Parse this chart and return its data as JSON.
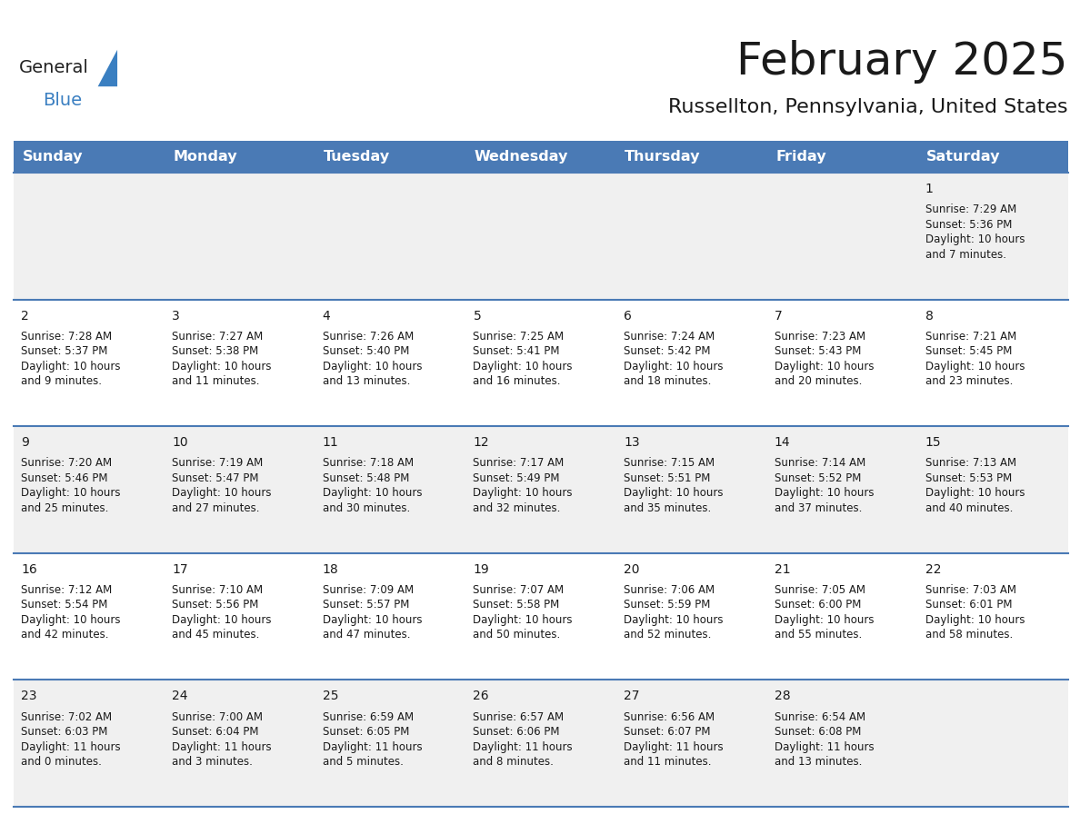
{
  "title": "February 2025",
  "subtitle": "Russellton, Pennsylvania, United States",
  "header_bg": "#4a7ab5",
  "header_text": "#ffffff",
  "row_bg_light": "#f0f0f0",
  "row_bg_white": "#ffffff",
  "border_color": "#4a7ab5",
  "text_color": "#1a1a1a",
  "day_headers": [
    "Sunday",
    "Monday",
    "Tuesday",
    "Wednesday",
    "Thursday",
    "Friday",
    "Saturday"
  ],
  "title_fontsize": 36,
  "subtitle_fontsize": 16,
  "header_fontsize": 11.5,
  "cell_day_fontsize": 10,
  "cell_text_fontsize": 8.5,
  "logo_general_fontsize": 14,
  "logo_blue_fontsize": 14,
  "days": [
    {
      "day": 1,
      "col": 6,
      "row": 0,
      "sunrise": "7:29 AM",
      "sunset": "5:36 PM",
      "daylight_line1": "Daylight: 10 hours",
      "daylight_line2": "and 7 minutes."
    },
    {
      "day": 2,
      "col": 0,
      "row": 1,
      "sunrise": "7:28 AM",
      "sunset": "5:37 PM",
      "daylight_line1": "Daylight: 10 hours",
      "daylight_line2": "and 9 minutes."
    },
    {
      "day": 3,
      "col": 1,
      "row": 1,
      "sunrise": "7:27 AM",
      "sunset": "5:38 PM",
      "daylight_line1": "Daylight: 10 hours",
      "daylight_line2": "and 11 minutes."
    },
    {
      "day": 4,
      "col": 2,
      "row": 1,
      "sunrise": "7:26 AM",
      "sunset": "5:40 PM",
      "daylight_line1": "Daylight: 10 hours",
      "daylight_line2": "and 13 minutes."
    },
    {
      "day": 5,
      "col": 3,
      "row": 1,
      "sunrise": "7:25 AM",
      "sunset": "5:41 PM",
      "daylight_line1": "Daylight: 10 hours",
      "daylight_line2": "and 16 minutes."
    },
    {
      "day": 6,
      "col": 4,
      "row": 1,
      "sunrise": "7:24 AM",
      "sunset": "5:42 PM",
      "daylight_line1": "Daylight: 10 hours",
      "daylight_line2": "and 18 minutes."
    },
    {
      "day": 7,
      "col": 5,
      "row": 1,
      "sunrise": "7:23 AM",
      "sunset": "5:43 PM",
      "daylight_line1": "Daylight: 10 hours",
      "daylight_line2": "and 20 minutes."
    },
    {
      "day": 8,
      "col": 6,
      "row": 1,
      "sunrise": "7:21 AM",
      "sunset": "5:45 PM",
      "daylight_line1": "Daylight: 10 hours",
      "daylight_line2": "and 23 minutes."
    },
    {
      "day": 9,
      "col": 0,
      "row": 2,
      "sunrise": "7:20 AM",
      "sunset": "5:46 PM",
      "daylight_line1": "Daylight: 10 hours",
      "daylight_line2": "and 25 minutes."
    },
    {
      "day": 10,
      "col": 1,
      "row": 2,
      "sunrise": "7:19 AM",
      "sunset": "5:47 PM",
      "daylight_line1": "Daylight: 10 hours",
      "daylight_line2": "and 27 minutes."
    },
    {
      "day": 11,
      "col": 2,
      "row": 2,
      "sunrise": "7:18 AM",
      "sunset": "5:48 PM",
      "daylight_line1": "Daylight: 10 hours",
      "daylight_line2": "and 30 minutes."
    },
    {
      "day": 12,
      "col": 3,
      "row": 2,
      "sunrise": "7:17 AM",
      "sunset": "5:49 PM",
      "daylight_line1": "Daylight: 10 hours",
      "daylight_line2": "and 32 minutes."
    },
    {
      "day": 13,
      "col": 4,
      "row": 2,
      "sunrise": "7:15 AM",
      "sunset": "5:51 PM",
      "daylight_line1": "Daylight: 10 hours",
      "daylight_line2": "and 35 minutes."
    },
    {
      "day": 14,
      "col": 5,
      "row": 2,
      "sunrise": "7:14 AM",
      "sunset": "5:52 PM",
      "daylight_line1": "Daylight: 10 hours",
      "daylight_line2": "and 37 minutes."
    },
    {
      "day": 15,
      "col": 6,
      "row": 2,
      "sunrise": "7:13 AM",
      "sunset": "5:53 PM",
      "daylight_line1": "Daylight: 10 hours",
      "daylight_line2": "and 40 minutes."
    },
    {
      "day": 16,
      "col": 0,
      "row": 3,
      "sunrise": "7:12 AM",
      "sunset": "5:54 PM",
      "daylight_line1": "Daylight: 10 hours",
      "daylight_line2": "and 42 minutes."
    },
    {
      "day": 17,
      "col": 1,
      "row": 3,
      "sunrise": "7:10 AM",
      "sunset": "5:56 PM",
      "daylight_line1": "Daylight: 10 hours",
      "daylight_line2": "and 45 minutes."
    },
    {
      "day": 18,
      "col": 2,
      "row": 3,
      "sunrise": "7:09 AM",
      "sunset": "5:57 PM",
      "daylight_line1": "Daylight: 10 hours",
      "daylight_line2": "and 47 minutes."
    },
    {
      "day": 19,
      "col": 3,
      "row": 3,
      "sunrise": "7:07 AM",
      "sunset": "5:58 PM",
      "daylight_line1": "Daylight: 10 hours",
      "daylight_line2": "and 50 minutes."
    },
    {
      "day": 20,
      "col": 4,
      "row": 3,
      "sunrise": "7:06 AM",
      "sunset": "5:59 PM",
      "daylight_line1": "Daylight: 10 hours",
      "daylight_line2": "and 52 minutes."
    },
    {
      "day": 21,
      "col": 5,
      "row": 3,
      "sunrise": "7:05 AM",
      "sunset": "6:00 PM",
      "daylight_line1": "Daylight: 10 hours",
      "daylight_line2": "and 55 minutes."
    },
    {
      "day": 22,
      "col": 6,
      "row": 3,
      "sunrise": "7:03 AM",
      "sunset": "6:01 PM",
      "daylight_line1": "Daylight: 10 hours",
      "daylight_line2": "and 58 minutes."
    },
    {
      "day": 23,
      "col": 0,
      "row": 4,
      "sunrise": "7:02 AM",
      "sunset": "6:03 PM",
      "daylight_line1": "Daylight: 11 hours",
      "daylight_line2": "and 0 minutes."
    },
    {
      "day": 24,
      "col": 1,
      "row": 4,
      "sunrise": "7:00 AM",
      "sunset": "6:04 PM",
      "daylight_line1": "Daylight: 11 hours",
      "daylight_line2": "and 3 minutes."
    },
    {
      "day": 25,
      "col": 2,
      "row": 4,
      "sunrise": "6:59 AM",
      "sunset": "6:05 PM",
      "daylight_line1": "Daylight: 11 hours",
      "daylight_line2": "and 5 minutes."
    },
    {
      "day": 26,
      "col": 3,
      "row": 4,
      "sunrise": "6:57 AM",
      "sunset": "6:06 PM",
      "daylight_line1": "Daylight: 11 hours",
      "daylight_line2": "and 8 minutes."
    },
    {
      "day": 27,
      "col": 4,
      "row": 4,
      "sunrise": "6:56 AM",
      "sunset": "6:07 PM",
      "daylight_line1": "Daylight: 11 hours",
      "daylight_line2": "and 11 minutes."
    },
    {
      "day": 28,
      "col": 5,
      "row": 4,
      "sunrise": "6:54 AM",
      "sunset": "6:08 PM",
      "daylight_line1": "Daylight: 11 hours",
      "daylight_line2": "and 13 minutes."
    }
  ]
}
